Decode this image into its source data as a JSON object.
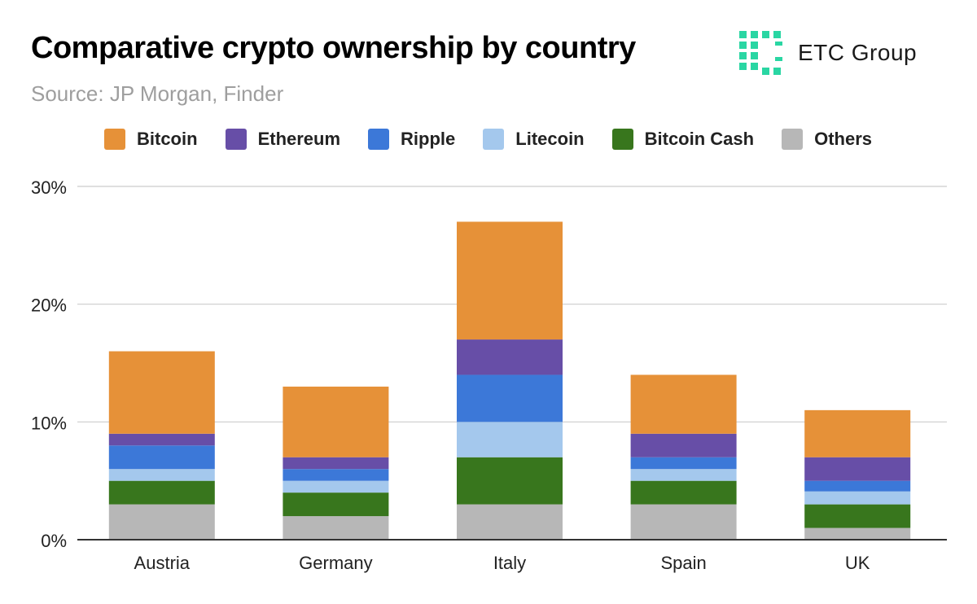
{
  "title": "Comparative crypto ownership by country",
  "subtitle": "Source: JP Morgan, Finder",
  "logo": {
    "text": "ETC Group",
    "color": "#2ad6a3"
  },
  "chart_data": {
    "type": "bar",
    "stacked": true,
    "categories": [
      "Austria",
      "Germany",
      "Italy",
      "Spain",
      "UK"
    ],
    "series": [
      {
        "name": "Others",
        "color": "#b7b7b7",
        "values": [
          3,
          2,
          3,
          3,
          1
        ]
      },
      {
        "name": "Bitcoin Cash",
        "color": "#38761d",
        "values": [
          2,
          2,
          4,
          2,
          2
        ]
      },
      {
        "name": "Litecoin",
        "color": "#a4c8ed",
        "values": [
          1,
          1,
          3,
          1,
          1.1
        ]
      },
      {
        "name": "Ripple",
        "color": "#3c78d8",
        "values": [
          2,
          1,
          4,
          1,
          0.9
        ]
      },
      {
        "name": "Ethereum",
        "color": "#674ea7",
        "values": [
          1,
          1,
          3,
          2,
          2
        ]
      },
      {
        "name": "Bitcoin",
        "color": "#e69138",
        "values": [
          7,
          6,
          10,
          5,
          4
        ]
      }
    ],
    "legend": [
      "Bitcoin",
      "Ethereum",
      "Ripple",
      "Litecoin",
      "Bitcoin Cash",
      "Others"
    ],
    "legend_position": "top-left",
    "ylim": [
      0,
      30
    ],
    "yticks": [
      0,
      10,
      20,
      30
    ],
    "ytick_labels": [
      "0%",
      "10%",
      "20%",
      "30%"
    ],
    "grid": true,
    "xlabel": "",
    "ylabel": ""
  }
}
